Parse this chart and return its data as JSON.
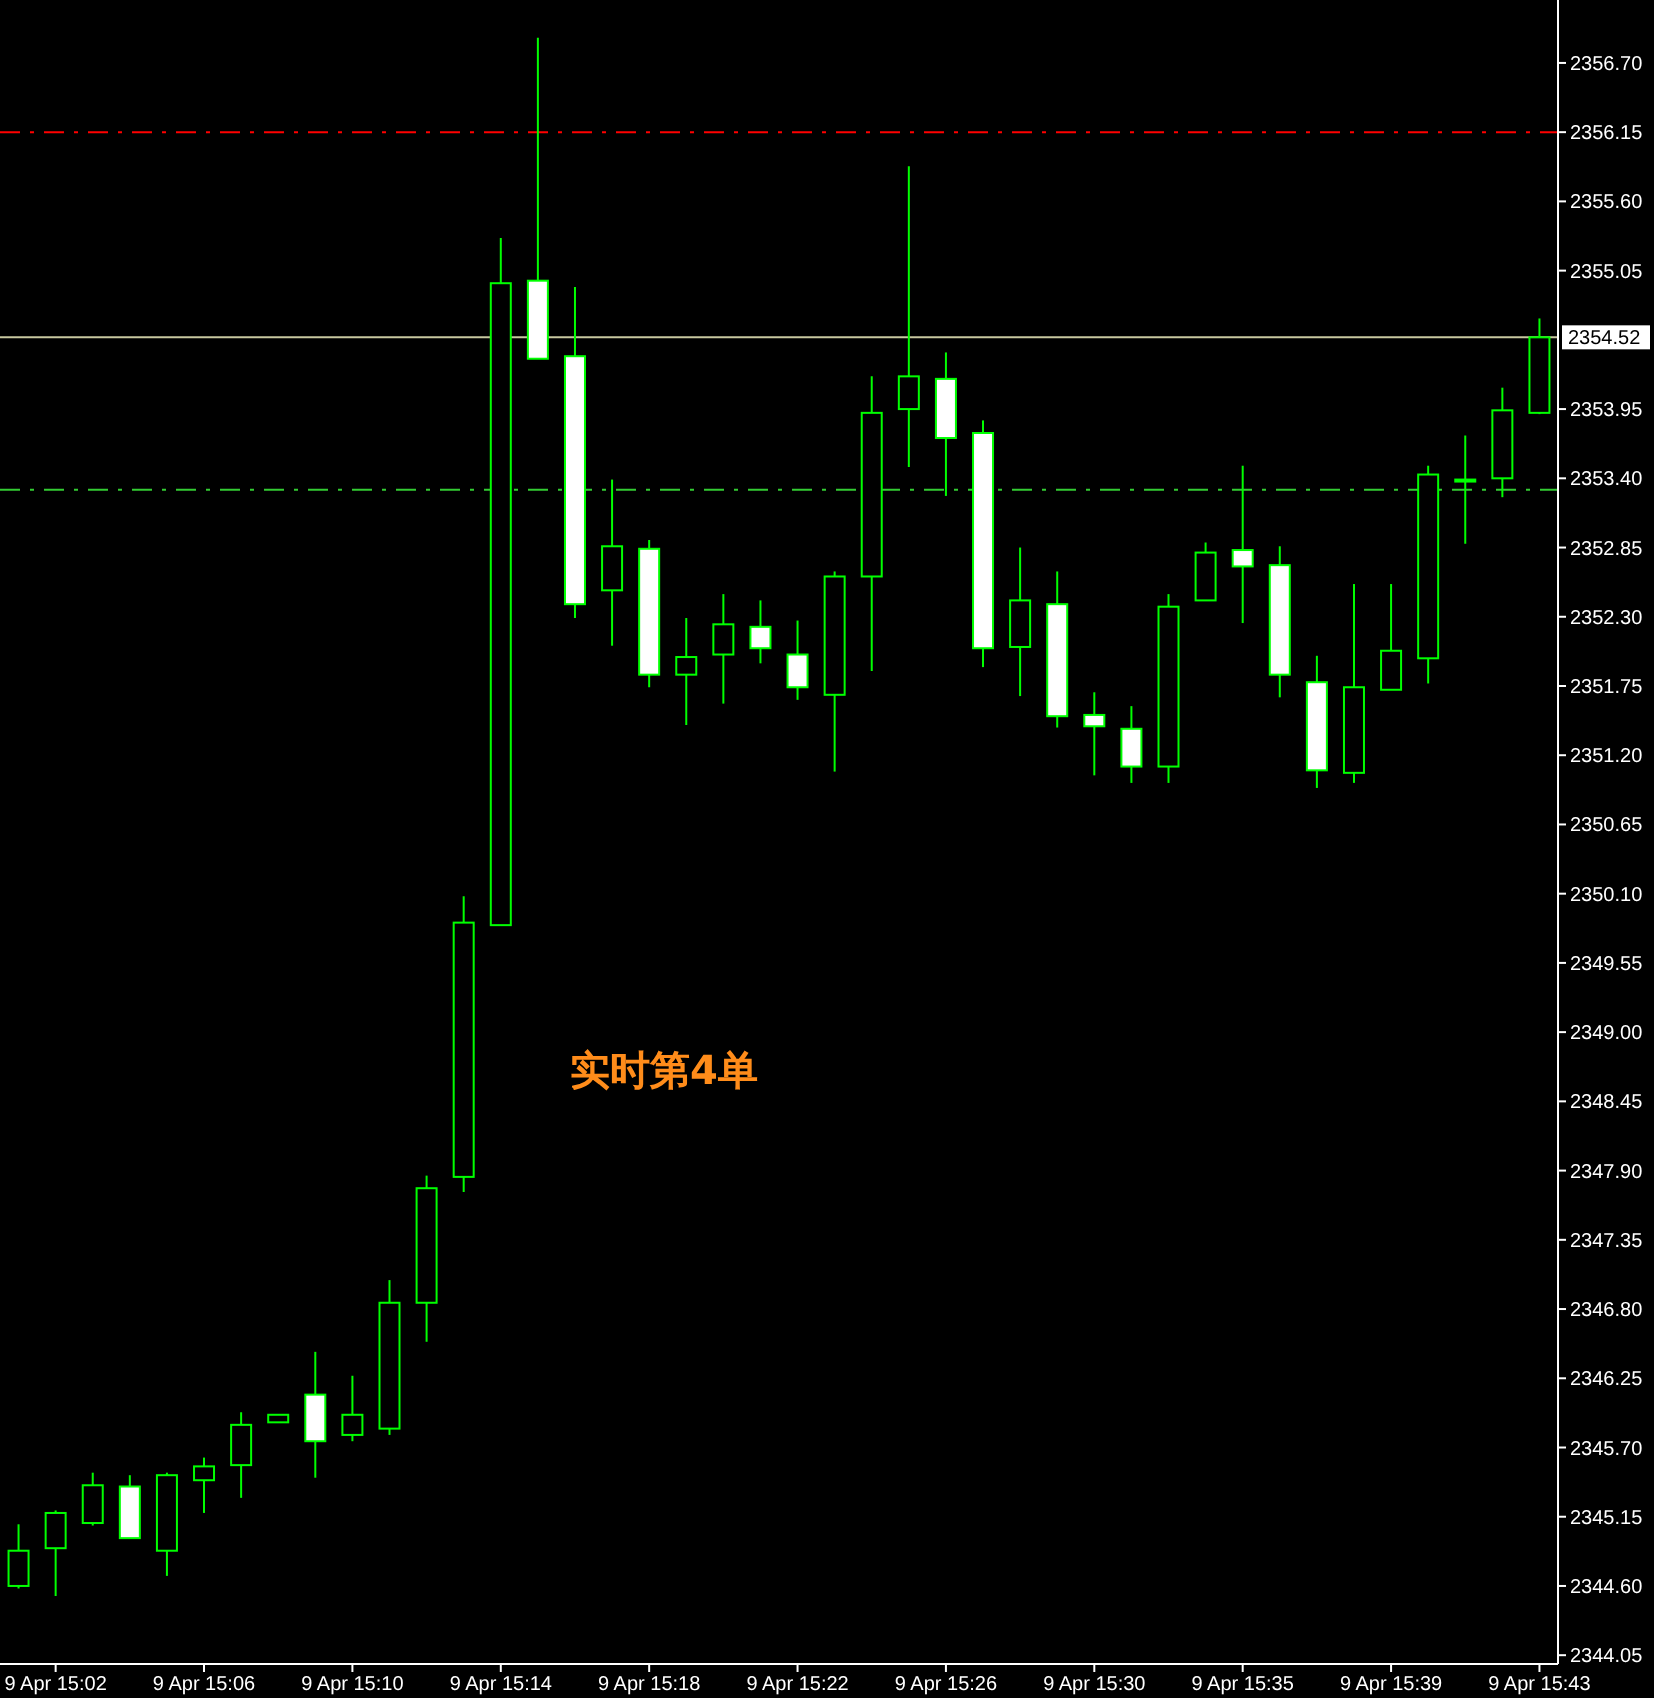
{
  "chart_data": {
    "type": "candlestick",
    "categories": [
      null,
      "9 Apr 15:02",
      null,
      null,
      null,
      "9 Apr 15:06",
      null,
      null,
      null,
      "9 Apr 15:10",
      null,
      null,
      null,
      "9 Apr 15:14",
      null,
      null,
      null,
      "9 Apr 15:18",
      null,
      null,
      null,
      "9 Apr 15:22",
      null,
      null,
      null,
      "9 Apr 15:26",
      null,
      null,
      null,
      "9 Apr 15:30",
      null,
      null,
      null,
      "9 Apr 15:35",
      null,
      null,
      null,
      "9 Apr 15:39",
      null,
      null,
      null,
      "9 Apr 15:43"
    ],
    "series": [
      {
        "color": "#00ff00",
        "ohlc": [
          [
            2344.6,
            2345.09,
            2344.58,
            2344.88
          ],
          [
            2344.9,
            2345.2,
            2344.52,
            2345.18
          ],
          [
            2345.1,
            2345.5,
            2345.08,
            2345.4
          ],
          [
            2345.39,
            2345.48,
            2344.98,
            2344.98
          ],
          [
            2344.88,
            2345.5,
            2344.68,
            2345.48
          ],
          [
            2345.44,
            2345.62,
            2345.18,
            2345.55
          ],
          [
            2345.56,
            2345.98,
            2345.3,
            2345.88
          ],
          [
            2345.9,
            2345.96,
            2345.9,
            2345.96
          ],
          [
            2346.12,
            2346.46,
            2345.46,
            2345.75
          ],
          [
            2345.8,
            2346.27,
            2345.75,
            2345.96
          ],
          [
            2345.85,
            2347.03,
            2345.8,
            2346.85
          ],
          [
            2346.85,
            2347.86,
            2346.54,
            2347.76
          ],
          [
            2347.85,
            2350.08,
            2347.73,
            2349.87
          ],
          [
            2349.85,
            2355.31,
            2349.85,
            2354.95
          ],
          [
            2354.97,
            2356.9,
            2354.35,
            2354.35
          ],
          [
            2354.37,
            2354.92,
            2352.29,
            2352.4
          ],
          [
            2352.51,
            2353.39,
            2352.07,
            2352.86
          ],
          [
            2352.84,
            2352.91,
            2351.74,
            2351.84
          ],
          [
            2351.84,
            2352.29,
            2351.44,
            2351.98
          ],
          [
            2352.0,
            2352.48,
            2351.61,
            2352.24
          ],
          [
            2352.22,
            2352.43,
            2351.93,
            2352.05
          ],
          [
            2352.0,
            2352.27,
            2351.64,
            2351.74
          ],
          [
            2351.68,
            2352.66,
            2351.07,
            2352.62
          ],
          [
            2352.62,
            2354.21,
            2351.87,
            2353.92
          ],
          [
            2353.95,
            2355.88,
            2353.49,
            2354.21
          ],
          [
            2354.19,
            2354.4,
            2353.26,
            2353.72
          ],
          [
            2353.76,
            2353.86,
            2351.9,
            2352.05
          ],
          [
            2352.06,
            2352.85,
            2351.67,
            2352.43
          ],
          [
            2352.4,
            2352.66,
            2351.42,
            2351.51
          ],
          [
            2351.52,
            2351.7,
            2351.04,
            2351.43
          ],
          [
            2351.41,
            2351.59,
            2350.98,
            2351.11
          ],
          [
            2351.11,
            2352.48,
            2350.98,
            2352.38
          ],
          [
            2352.43,
            2352.89,
            2352.43,
            2352.81
          ],
          [
            2352.83,
            2353.5,
            2352.25,
            2352.7
          ],
          [
            2352.71,
            2352.86,
            2351.66,
            2351.84
          ],
          [
            2351.78,
            2351.99,
            2350.94,
            2351.08
          ],
          [
            2351.06,
            2352.56,
            2350.98,
            2351.74
          ],
          [
            2351.72,
            2352.56,
            2351.72,
            2352.03
          ],
          [
            2351.97,
            2353.5,
            2351.77,
            2353.43
          ],
          [
            2353.39,
            2353.74,
            2352.88,
            2353.39
          ],
          [
            2353.4,
            2354.12,
            2353.25,
            2353.94
          ],
          [
            2353.92,
            2354.67,
            2353.91,
            2354.52
          ]
        ]
      }
    ],
    "ylim": [
      2343.98,
      2357.2
    ],
    "yticks": [
      {
        "value": 2344.05,
        "label": "2344.05"
      },
      {
        "value": 2344.6,
        "label": "2344.60"
      },
      {
        "value": 2345.15,
        "label": "2345.15"
      },
      {
        "value": 2345.7,
        "label": "2345.70"
      },
      {
        "value": 2346.25,
        "label": "2346.25"
      },
      {
        "value": 2346.8,
        "label": "2346.80"
      },
      {
        "value": 2347.35,
        "label": "2347.35"
      },
      {
        "value": 2347.9,
        "label": "2347.90"
      },
      {
        "value": 2348.45,
        "label": "2348.45"
      },
      {
        "value": 2349,
        "label": "2349.00"
      },
      {
        "value": 2349.55,
        "label": "2349.55"
      },
      {
        "value": 2350.1,
        "label": "2350.10"
      },
      {
        "value": 2350.65,
        "label": "2350.65"
      },
      {
        "value": 2351.2,
        "label": "2351.20"
      },
      {
        "value": 2351.75,
        "label": "2351.75"
      },
      {
        "value": 2352.3,
        "label": "2352.30"
      },
      {
        "value": 2352.85,
        "label": "2352.85"
      },
      {
        "value": 2353.4,
        "label": "2353.40"
      },
      {
        "value": 2353.95,
        "label": "2353.95"
      },
      {
        "value": 2355.05,
        "label": "2355.05"
      },
      {
        "value": 2355.6,
        "label": "2355.60"
      },
      {
        "value": 2356.15,
        "label": "2356.15"
      },
      {
        "value": 2356.7,
        "label": "2356.70"
      }
    ],
    "ref_lines": [
      {
        "axis": "y",
        "value": 2356.15,
        "color": "#ff0000",
        "line_style": "dashed"
      },
      {
        "axis": "y",
        "value": 2353.31,
        "color": "#33cc33",
        "line_style": "dashed"
      },
      {
        "axis": "y",
        "value": 2354.52,
        "label": "2354.52",
        "color": "#c8c8a0",
        "line_style": "solid"
      }
    ],
    "annotations": [
      "实时第4单"
    ]
  }
}
